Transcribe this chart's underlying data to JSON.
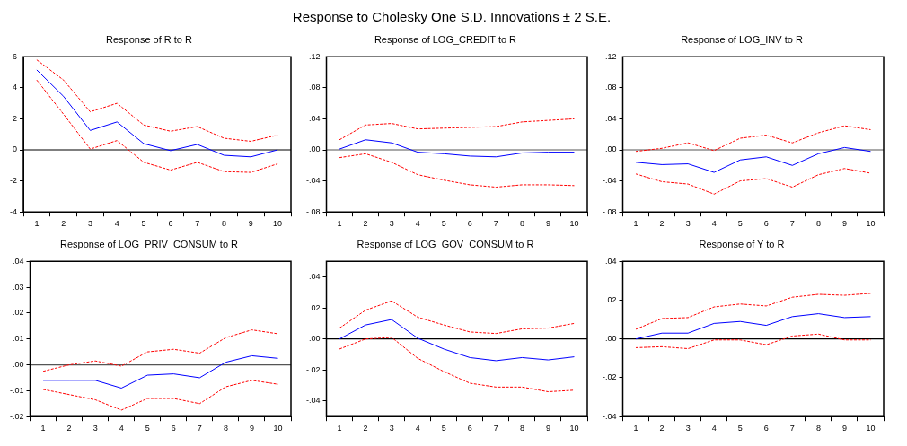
{
  "chart_data": [
    {
      "type": "other",
      "title": "Response to Cholesky One S.D. Innovations ± 2 S.E."
    },
    {
      "type": "line",
      "title": "Response of R to R",
      "categories": [
        "1",
        "2",
        "3",
        "4",
        "5",
        "6",
        "7",
        "8",
        "9",
        "10"
      ],
      "ylim": [
        -4,
        6
      ],
      "yticks": [
        -4,
        -2,
        0,
        2,
        4,
        6
      ],
      "legend": false,
      "grid": false,
      "ref_lines": [
        {
          "axis": "y",
          "value": 0,
          "color": "#000000"
        }
      ],
      "series": [
        {
          "color": "#0000ff",
          "line_style": "solid",
          "values": [
            5.15,
            3.45,
            1.25,
            1.8,
            0.4,
            -0.05,
            0.35,
            -0.35,
            -0.45,
            0.0
          ]
        },
        {
          "color": "#ff0000",
          "line_style": "dashed",
          "values": [
            5.8,
            4.5,
            2.45,
            3.0,
            1.6,
            1.2,
            1.5,
            0.75,
            0.55,
            0.95
          ]
        },
        {
          "color": "#ff0000",
          "line_style": "dashed",
          "values": [
            4.5,
            2.3,
            0.05,
            0.6,
            -0.8,
            -1.3,
            -0.8,
            -1.4,
            -1.45,
            -0.9
          ]
        }
      ]
    },
    {
      "type": "line",
      "title": "Response of LOG_CREDIT to R",
      "categories": [
        "1",
        "2",
        "3",
        "4",
        "5",
        "6",
        "7",
        "8",
        "9",
        "10"
      ],
      "ylim": [
        -0.08,
        0.12
      ],
      "yticks": [
        {
          "value": -0.08,
          "label": "-.08"
        },
        {
          "value": -0.04,
          "label": "-.04"
        },
        {
          "value": 0,
          "label": ".00"
        },
        {
          "value": 0.04,
          "label": ".04"
        },
        {
          "value": 0.08,
          "label": ".08"
        },
        {
          "value": 0.12,
          "label": ".12"
        }
      ],
      "legend": false,
      "grid": false,
      "ref_lines": [
        {
          "axis": "y",
          "value": 0,
          "color": "#555555"
        }
      ],
      "series": [
        {
          "color": "#0000ff",
          "line_style": "solid",
          "values": [
            0.001,
            0.013,
            0.009,
            -0.003,
            -0.005,
            -0.008,
            -0.009,
            -0.004,
            -0.003,
            -0.003
          ]
        },
        {
          "color": "#ff0000",
          "line_style": "dashed",
          "values": [
            0.013,
            0.032,
            0.034,
            0.027,
            0.028,
            0.029,
            0.03,
            0.036,
            0.038,
            0.04
          ]
        },
        {
          "color": "#ff0000",
          "line_style": "dashed",
          "values": [
            -0.01,
            -0.005,
            -0.016,
            -0.032,
            -0.039,
            -0.045,
            -0.048,
            -0.045,
            -0.045,
            -0.046
          ]
        }
      ]
    },
    {
      "type": "line",
      "title": "Response of LOG_INV to R",
      "categories": [
        "1",
        "2",
        "3",
        "4",
        "5",
        "6",
        "7",
        "8",
        "9",
        "10"
      ],
      "ylim": [
        -0.08,
        0.12
      ],
      "yticks": [
        {
          "value": -0.08,
          "label": "-.08"
        },
        {
          "value": -0.04,
          "label": "-.04"
        },
        {
          "value": 0,
          "label": ".00"
        },
        {
          "value": 0.04,
          "label": ".04"
        },
        {
          "value": 0.08,
          "label": ".08"
        },
        {
          "value": 0.12,
          "label": ".12"
        }
      ],
      "legend": false,
      "grid": false,
      "ref_lines": [
        {
          "axis": "y",
          "value": 0,
          "color": "#555555"
        }
      ],
      "series": [
        {
          "color": "#0000ff",
          "line_style": "solid",
          "values": [
            -0.016,
            -0.019,
            -0.018,
            -0.029,
            -0.013,
            -0.009,
            -0.02,
            -0.005,
            0.003,
            -0.002
          ]
        },
        {
          "color": "#ff0000",
          "line_style": "dashed",
          "values": [
            -0.002,
            0.002,
            0.009,
            -0.001,
            0.015,
            0.019,
            0.009,
            0.022,
            0.031,
            0.026
          ]
        },
        {
          "color": "#ff0000",
          "line_style": "dashed",
          "values": [
            -0.031,
            -0.041,
            -0.044,
            -0.057,
            -0.04,
            -0.037,
            -0.048,
            -0.032,
            -0.024,
            -0.03
          ]
        }
      ]
    },
    {
      "type": "line",
      "title": "Response of LOG_PRIV_CONSUM to R",
      "categories": [
        "1",
        "2",
        "3",
        "4",
        "5",
        "6",
        "7",
        "8",
        "9",
        "10"
      ],
      "ylim": [
        -0.02,
        0.04
      ],
      "yticks": [
        {
          "value": -0.02,
          "label": "-.02"
        },
        {
          "value": -0.01,
          "label": "-.01"
        },
        {
          "value": 0,
          "label": ".00"
        },
        {
          "value": 0.01,
          "label": ".01"
        },
        {
          "value": 0.02,
          "label": ".02"
        },
        {
          "value": 0.03,
          "label": ".03"
        },
        {
          "value": 0.04,
          "label": ".04"
        }
      ],
      "legend": false,
      "grid": false,
      "ref_lines": [
        {
          "axis": "y",
          "value": 0,
          "color": "#555555"
        }
      ],
      "series": [
        {
          "color": "#0000ff",
          "line_style": "solid",
          "values": [
            -0.006,
            -0.006,
            -0.006,
            -0.009,
            -0.004,
            -0.0035,
            -0.005,
            0.001,
            0.0035,
            0.0025
          ]
        },
        {
          "color": "#ff0000",
          "line_style": "dashed",
          "values": [
            -0.0025,
            0.0,
            0.0015,
            -0.0005,
            0.005,
            0.006,
            0.0045,
            0.0105,
            0.0135,
            0.012
          ]
        },
        {
          "color": "#ff0000",
          "line_style": "dashed",
          "values": [
            -0.0095,
            -0.0115,
            -0.0135,
            -0.0175,
            -0.013,
            -0.013,
            -0.015,
            -0.0085,
            -0.006,
            -0.0075
          ]
        }
      ]
    },
    {
      "type": "line",
      "title": "Response of LOG_GOV_CONSUM to R",
      "categories": [
        "1",
        "2",
        "3",
        "4",
        "5",
        "6",
        "7",
        "8",
        "9",
        "10"
      ],
      "ylim": [
        -0.05,
        0.05
      ],
      "yticks": [
        {
          "value": -0.04,
          "label": "-.04"
        },
        {
          "value": -0.02,
          "label": "-.02"
        },
        {
          "value": 0,
          "label": ".00"
        },
        {
          "value": 0.02,
          "label": ".02"
        },
        {
          "value": 0.04,
          "label": ".04"
        }
      ],
      "legend": false,
      "grid": false,
      "ref_lines": [
        {
          "axis": "y",
          "value": 0,
          "color": "#000000"
        }
      ],
      "series": [
        {
          "color": "#0000ff",
          "line_style": "solid",
          "values": [
            0.0,
            0.009,
            0.0125,
            0.0005,
            -0.0065,
            -0.012,
            -0.014,
            -0.012,
            -0.0135,
            -0.0115
          ]
        },
        {
          "color": "#ff0000",
          "line_style": "dashed",
          "values": [
            0.007,
            0.0185,
            0.0245,
            0.014,
            0.009,
            0.0045,
            0.0035,
            0.0065,
            0.007,
            0.01
          ]
        },
        {
          "color": "#ff0000",
          "line_style": "dashed",
          "values": [
            -0.0065,
            0.0,
            0.001,
            -0.0125,
            -0.021,
            -0.0285,
            -0.031,
            -0.031,
            -0.034,
            -0.033
          ]
        }
      ]
    },
    {
      "type": "line",
      "title": "Response of Y to R",
      "categories": [
        "1",
        "2",
        "3",
        "4",
        "5",
        "6",
        "7",
        "8",
        "9",
        "10"
      ],
      "ylim": [
        -0.04,
        0.04
      ],
      "yticks": [
        {
          "value": -0.04,
          "label": "-.04"
        },
        {
          "value": -0.02,
          "label": "-.02"
        },
        {
          "value": 0,
          "label": ".00"
        },
        {
          "value": 0.02,
          "label": ".02"
        },
        {
          "value": 0.04,
          "label": ".04"
        }
      ],
      "legend": false,
      "grid": false,
      "ref_lines": [
        {
          "axis": "y",
          "value": 0,
          "color": "#000000"
        }
      ],
      "series": [
        {
          "color": "#0000ff",
          "line_style": "solid",
          "values": [
            0.0,
            0.003,
            0.003,
            0.008,
            0.009,
            0.007,
            0.0115,
            0.013,
            0.011,
            0.0115
          ]
        },
        {
          "color": "#ff0000",
          "line_style": "dashed",
          "values": [
            0.005,
            0.0105,
            0.011,
            0.0165,
            0.018,
            0.017,
            0.0215,
            0.023,
            0.0225,
            0.0235
          ]
        },
        {
          "color": "#ff0000",
          "line_style": "dashed",
          "values": [
            -0.0045,
            -0.004,
            -0.005,
            -0.0005,
            -0.0005,
            -0.003,
            0.0015,
            0.0025,
            -0.0005,
            -0.0005
          ]
        }
      ]
    }
  ]
}
